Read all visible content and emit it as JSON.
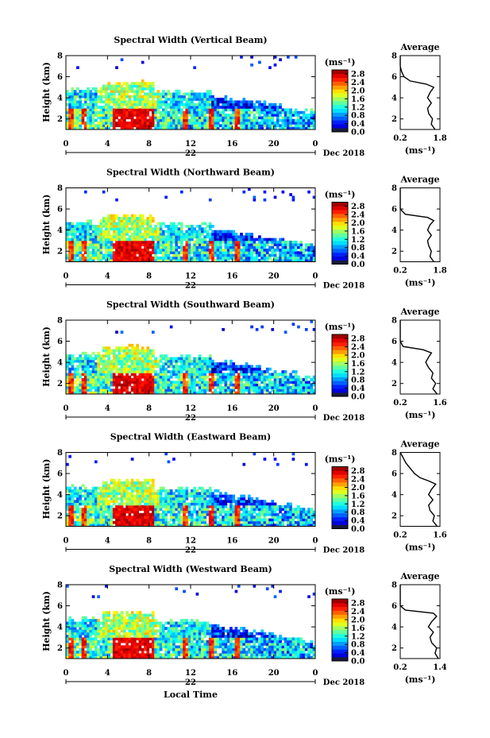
{
  "figure": {
    "xlabel": "Local Time",
    "date_label": "Dec 2018",
    "day_label": "22",
    "colorbar_unit": "(ms⁻¹)",
    "avg_unit": "(ms⁻¹)",
    "avg_title": "Average",
    "ylabel": "Height (km)"
  },
  "chart_data": [
    {
      "type": "heatmap",
      "title": "Spectral Width (Vertical Beam)",
      "ylabel": "Height (km)",
      "x_ticks": [
        "0",
        "4",
        "8",
        "12",
        "16",
        "20",
        "0"
      ],
      "y_ticks": [
        "2",
        "4",
        "6",
        "8"
      ],
      "xlim": [
        0,
        24
      ],
      "ylim": [
        1,
        8
      ],
      "colorbar": {
        "ticks": [
          "0.0",
          "0.4",
          "0.8",
          "1.2",
          "1.6",
          "2.0",
          "2.4",
          "2.8"
        ],
        "range": [
          0.0,
          3.0
        ]
      },
      "average": {
        "title": "Average",
        "xticks": [
          "0.2",
          "1.8"
        ],
        "xlim": [
          0.2,
          1.8
        ],
        "yticks": [
          "2",
          "4",
          "6",
          "8"
        ],
        "ylim": [
          1,
          8
        ],
        "heights": [
          1.0,
          1.5,
          2.0,
          2.5,
          3.0,
          3.5,
          4.0,
          4.5,
          5.0,
          5.3,
          5.6,
          6.0,
          6.5,
          7.0,
          7.5,
          8.0
        ],
        "values": [
          1.6,
          1.45,
          1.5,
          1.35,
          1.3,
          1.45,
          1.3,
          1.4,
          1.55,
          1.25,
          0.6,
          0.35,
          0.25,
          0.2,
          0.2,
          0.2
        ]
      }
    },
    {
      "type": "heatmap",
      "title": "Spectral Width (Northward Beam)",
      "ylabel": "Height (km)",
      "x_ticks": [
        "0",
        "4",
        "8",
        "12",
        "16",
        "20",
        "0"
      ],
      "y_ticks": [
        "2",
        "4",
        "6",
        "8"
      ],
      "xlim": [
        0,
        24
      ],
      "ylim": [
        1,
        8
      ],
      "colorbar": {
        "ticks": [
          "0.0",
          "0.4",
          "0.8",
          "1.2",
          "1.6",
          "2.0",
          "2.4",
          "2.8"
        ],
        "range": [
          0.0,
          3.0
        ]
      },
      "average": {
        "title": "Average",
        "xticks": [
          "0.2",
          "1.8"
        ],
        "xlim": [
          0.2,
          1.8
        ],
        "yticks": [
          "2",
          "4",
          "6",
          "8"
        ],
        "ylim": [
          1,
          8
        ],
        "heights": [
          1.0,
          1.5,
          2.0,
          2.5,
          3.0,
          3.5,
          4.0,
          4.5,
          4.9,
          5.2,
          5.5,
          6.0,
          7.0,
          8.0
        ],
        "values": [
          1.55,
          1.4,
          1.45,
          1.35,
          1.3,
          1.45,
          1.3,
          1.4,
          1.55,
          1.3,
          0.4,
          0.2,
          0.2,
          0.2
        ]
      }
    },
    {
      "type": "heatmap",
      "title": "Spectral Width (Southward Beam)",
      "ylabel": "Height (km)",
      "x_ticks": [
        "0",
        "4",
        "8",
        "12",
        "16",
        "20",
        "0"
      ],
      "y_ticks": [
        "2",
        "4",
        "6",
        "8"
      ],
      "xlim": [
        0,
        24
      ],
      "ylim": [
        1,
        8
      ],
      "colorbar": {
        "ticks": [
          "0.0",
          "0.4",
          "0.8",
          "1.2",
          "1.6",
          "2.0",
          "2.4",
          "2.8"
        ],
        "range": [
          0.0,
          3.0
        ]
      },
      "average": {
        "title": "Average",
        "xticks": [
          "0.2",
          "1.6"
        ],
        "xlim": [
          0.2,
          1.6
        ],
        "yticks": [
          "2",
          "4",
          "6",
          "8"
        ],
        "ylim": [
          1,
          8
        ],
        "heights": [
          1.0,
          1.5,
          2.0,
          2.5,
          3.0,
          3.5,
          4.0,
          4.5,
          4.9,
          5.2,
          5.5,
          6.0,
          7.0,
          8.0
        ],
        "values": [
          1.5,
          1.35,
          1.45,
          1.3,
          1.35,
          1.2,
          1.1,
          1.2,
          1.3,
          1.0,
          0.3,
          0.2,
          0.2,
          0.2
        ]
      }
    },
    {
      "type": "heatmap",
      "title": "Spectral Width (Eastward Beam)",
      "ylabel": "Height (km)",
      "x_ticks": [
        "0",
        "4",
        "8",
        "12",
        "16",
        "20",
        "0"
      ],
      "y_ticks": [
        "2",
        "4",
        "6",
        "8"
      ],
      "xlim": [
        0,
        24
      ],
      "ylim": [
        1,
        8
      ],
      "colorbar": {
        "ticks": [
          "0.0",
          "0.4",
          "0.8",
          "1.2",
          "1.6",
          "2.0",
          "2.4",
          "2.8"
        ],
        "range": [
          0.0,
          3.0
        ]
      },
      "average": {
        "title": "Average",
        "xticks": [
          "0.2",
          "1.6"
        ],
        "xlim": [
          0.2,
          1.6
        ],
        "yticks": [
          "2",
          "4",
          "6",
          "8"
        ],
        "ylim": [
          1,
          8
        ],
        "heights": [
          1.0,
          1.5,
          2.0,
          2.5,
          3.0,
          3.5,
          4.0,
          4.5,
          5.0,
          5.3,
          5.6,
          6.0,
          6.5,
          7.0,
          7.5,
          8.0
        ],
        "values": [
          1.5,
          1.35,
          1.4,
          1.25,
          1.2,
          1.35,
          1.2,
          1.3,
          1.45,
          1.2,
          0.9,
          0.7,
          0.55,
          0.4,
          0.3,
          0.2
        ]
      }
    },
    {
      "type": "heatmap",
      "title": "Spectral Width (Westward Beam)",
      "ylabel": "Height (km)",
      "x_ticks": [
        "0",
        "4",
        "8",
        "12",
        "16",
        "20",
        "0"
      ],
      "y_ticks": [
        "2",
        "4",
        "6",
        "8"
      ],
      "xlim": [
        0,
        24
      ],
      "ylim": [
        1,
        8
      ],
      "colorbar": {
        "ticks": [
          "0.0",
          "0.4",
          "0.8",
          "1.2",
          "1.6",
          "2.0",
          "2.4",
          "2.8"
        ],
        "range": [
          0.0,
          3.0
        ]
      },
      "average": {
        "title": "Average",
        "xticks": [
          "0.2",
          "1.4"
        ],
        "xlim": [
          0.2,
          1.4
        ],
        "yticks": [
          "2",
          "4",
          "6",
          "8"
        ],
        "ylim": [
          1,
          8
        ],
        "heights": [
          1.0,
          1.5,
          2.0,
          2.5,
          3.0,
          3.5,
          4.0,
          4.5,
          5.0,
          5.3,
          5.6,
          6.0,
          7.0,
          8.0
        ],
        "values": [
          1.35,
          1.25,
          1.3,
          1.15,
          1.1,
          1.2,
          1.05,
          1.15,
          1.3,
          1.2,
          0.35,
          0.2,
          0.2,
          0.2
        ]
      }
    }
  ]
}
